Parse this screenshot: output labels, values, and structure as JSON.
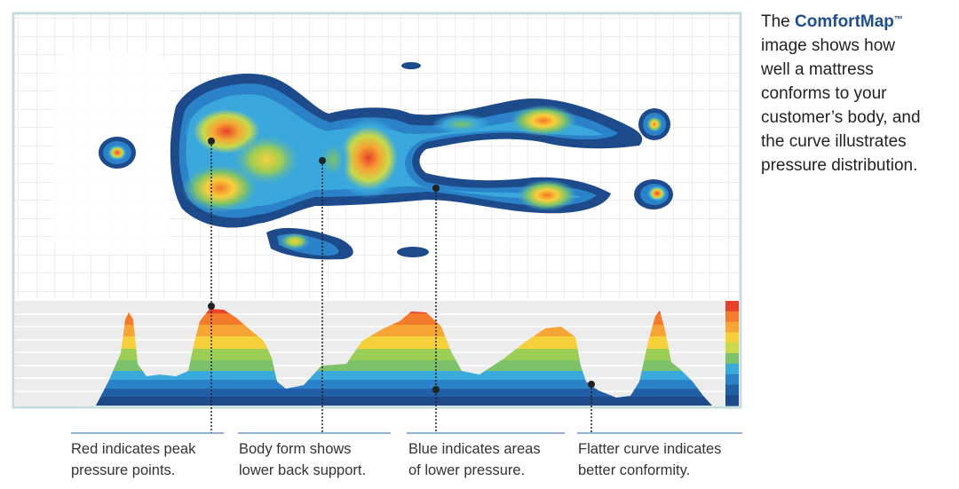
{
  "description": {
    "prefix": "The ",
    "brand": "ComfortMap",
    "trademark": "™",
    "line1": "image shows how",
    "line2": "well a mattress",
    "line3": "conforms to your",
    "line4": "customer’s body, and",
    "line5": "the curve illustrates",
    "line6": "pressure distribution."
  },
  "callouts": [
    {
      "line1": "Red indicates peak",
      "line2": "pressure points."
    },
    {
      "line1": "Body form shows",
      "line2": "lower back support."
    },
    {
      "line1": "Blue indicates areas",
      "line2": "of lower pressure."
    },
    {
      "line1": "Flatter curve indicates",
      "line2": "better conformity."
    }
  ],
  "pressure_scale": {
    "colors": [
      "#e8402a",
      "#f47a2c",
      "#f6a534",
      "#f6d03a",
      "#c8d94a",
      "#7cc26a",
      "#3aa9dc",
      "#2b82c8",
      "#215fa6",
      "#1c4a8a"
    ]
  },
  "colors": {
    "frame_border": "#c5dcdf",
    "grid_line": "#dcdcdc",
    "callout_line": "#6f95c8",
    "leader_dots": "#222222"
  }
}
